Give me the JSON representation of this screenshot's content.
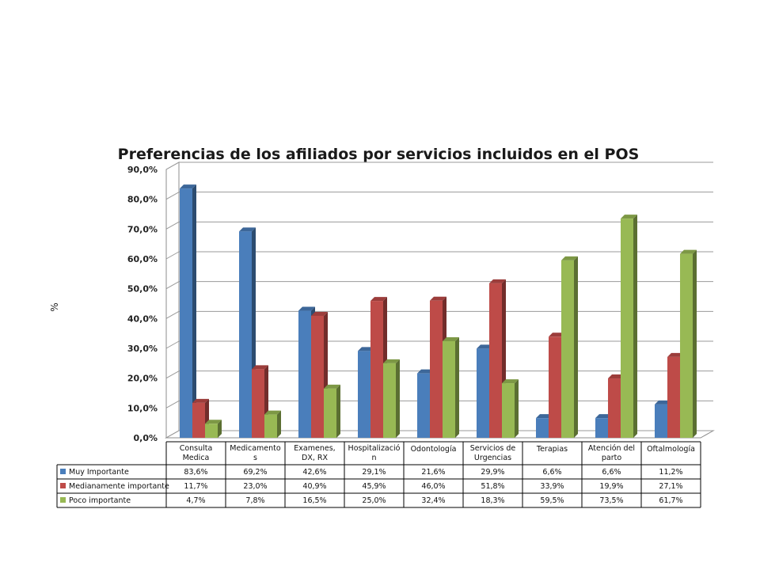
{
  "chart_data": {
    "type": "bar",
    "title": "Preferencias de los afiliados por servicios incluidos en el POS",
    "ylabel": "%",
    "ylim": [
      0,
      90
    ],
    "yticks": [
      "0,0%",
      "10,0%",
      "20,0%",
      "30,0%",
      "40,0%",
      "50,0%",
      "60,0%",
      "70,0%",
      "80,0%",
      "90,0%"
    ],
    "grid": true,
    "legend": "data-table",
    "categories": [
      [
        "Consulta",
        "Medica"
      ],
      [
        "Medicamento",
        "s"
      ],
      [
        "Examenes,",
        "DX, RX"
      ],
      [
        "Hospitalizació",
        "n"
      ],
      [
        "Odontología"
      ],
      [
        "Servicios de",
        "Urgencias"
      ],
      [
        "Terapias"
      ],
      [
        "Atención del",
        "parto"
      ],
      [
        "Oftalmología"
      ]
    ],
    "series": [
      {
        "name": "Muy Importante",
        "color": "#4a7ebb",
        "values": [
          83.6,
          69.2,
          42.6,
          29.1,
          21.6,
          29.9,
          6.6,
          6.6,
          11.2
        ],
        "labels": [
          "83,6%",
          "69,2%",
          "42,6%",
          "29,1%",
          "21,6%",
          "29,9%",
          "6,6%",
          "6,6%",
          "11,2%"
        ]
      },
      {
        "name": "Medianamente importante",
        "color": "#be4b48",
        "values": [
          11.7,
          23.0,
          40.9,
          45.9,
          46.0,
          51.8,
          33.9,
          19.9,
          27.1
        ],
        "labels": [
          "11,7%",
          "23,0%",
          "40,9%",
          "45,9%",
          "46,0%",
          "51,8%",
          "33,9%",
          "19,9%",
          "27,1%"
        ]
      },
      {
        "name": "Poco importante",
        "color": "#98b954",
        "values": [
          4.7,
          7.8,
          16.5,
          25.0,
          32.4,
          18.3,
          59.5,
          73.5,
          61.7
        ],
        "labels": [
          "4,7%",
          "7,8%",
          "16,5%",
          "25,0%",
          "32,4%",
          "18,3%",
          "59,5%",
          "73,5%",
          "61,7%"
        ]
      }
    ]
  }
}
